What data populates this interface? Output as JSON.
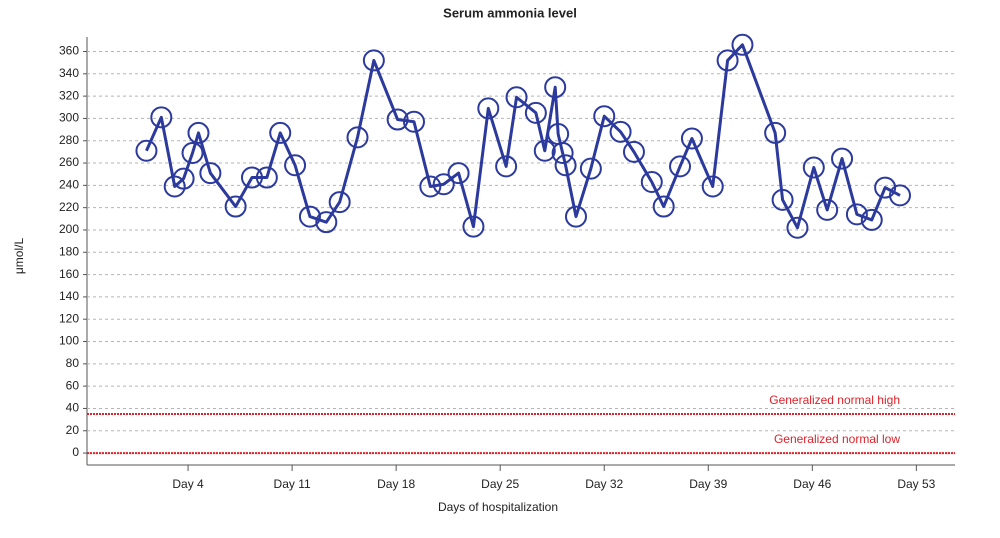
{
  "chart_data": {
    "type": "line",
    "title": "Serum ammonia level",
    "x_label": "Days of hospitalization",
    "y_label": "μmol/L",
    "x": [
      1.2,
      2.2,
      3.1,
      3.7,
      4.3,
      4.7,
      5.5,
      7.2,
      8.3,
      9.3,
      10.2,
      11.2,
      12.2,
      13.3,
      14.2,
      15.4,
      16.5,
      18.1,
      19.2,
      20.3,
      21.2,
      22.2,
      23.2,
      24.2,
      25.4,
      26.1,
      27.4,
      28.0,
      28.7,
      28.9,
      29.2,
      29.4,
      30.1,
      31.1,
      32.0,
      33.1,
      34.0,
      35.2,
      36.0,
      37.1,
      37.9,
      39.3,
      40.3,
      41.3,
      43.5,
      44.0,
      45.0,
      46.1,
      47.0,
      48.0,
      49.0,
      50.0,
      50.9,
      51.9
    ],
    "values": [
      271,
      301,
      239,
      246,
      269,
      287,
      251,
      221,
      247,
      247,
      287,
      258,
      212,
      207,
      225,
      283,
      352,
      299,
      297,
      239,
      241,
      251,
      203,
      309,
      257,
      319,
      305,
      271,
      328,
      286,
      269,
      258,
      212,
      255,
      302,
      288,
      270,
      243,
      221,
      257,
      282,
      239,
      352,
      366,
      287,
      227,
      202,
      256,
      218,
      264,
      214,
      209,
      238,
      231
    ],
    "color": "#2b3a9c",
    "xlim": [
      -2.8,
      55.6
    ],
    "xticks": [
      {
        "value": 4,
        "label": "Day 4"
      },
      {
        "value": 11,
        "label": "Day 11"
      },
      {
        "value": 18,
        "label": "Day 18"
      },
      {
        "value": 25,
        "label": "Day 25"
      },
      {
        "value": 32,
        "label": "Day 32"
      },
      {
        "value": 39,
        "label": "Day 39"
      },
      {
        "value": 46,
        "label": "Day 46"
      },
      {
        "value": 53,
        "label": "Day 53"
      }
    ],
    "ylim": [
      -10.7,
      373
    ],
    "yticks": [
      0,
      20,
      40,
      60,
      80,
      100,
      120,
      140,
      160,
      180,
      200,
      220,
      240,
      260,
      280,
      300,
      320,
      340,
      360
    ],
    "grid": true,
    "reference_lines": [
      {
        "value": 35,
        "label": "Generalized normal high",
        "color": "#e0222a"
      },
      {
        "value": 0,
        "label": "Generalized normal low",
        "color": "#e0222a"
      }
    ]
  }
}
